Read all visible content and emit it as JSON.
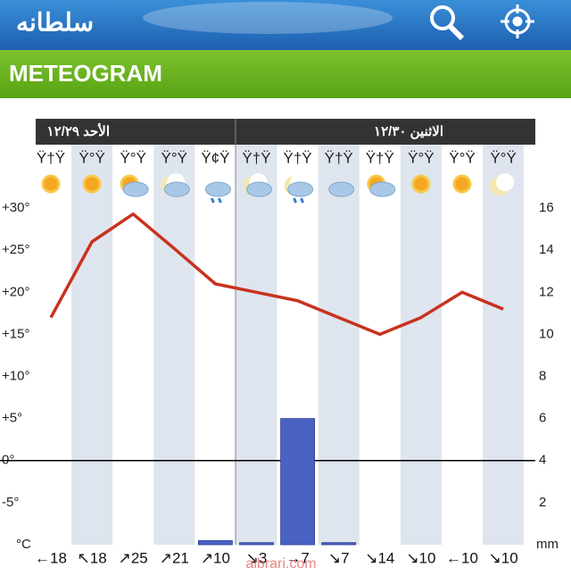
{
  "header": {
    "title": "سلطانه",
    "tab": "METEOGRAM"
  },
  "days": [
    "الأحد ١٢/٢٩",
    "الاثنين ١٢/٣٠"
  ],
  "watermark": "albrari.com",
  "chart_data": {
    "type": "line",
    "categories": [
      "Ÿ†Ÿ",
      "Ÿ°Ÿ",
      "Ÿ°Ÿ",
      "Ÿ°Ÿ",
      "Ÿ¢Ÿ",
      "Ÿ†Ÿ",
      "Ÿ†Ÿ",
      "Ÿ†Ÿ",
      "Ÿ†Ÿ",
      "Ÿ°Ÿ",
      "Ÿ°Ÿ",
      "Ÿ°Ÿ"
    ],
    "wind": [
      "←18",
      "↖18",
      "↗25",
      "↗21",
      "↗10",
      "↘3",
      "→7",
      "↘7",
      "↘14",
      "↘10",
      "←10",
      "↘10"
    ],
    "series": [
      {
        "color": "#c8321e",
        "values": [
          17,
          26,
          29.3,
          25.2,
          21,
          20,
          19,
          17,
          15,
          17,
          20,
          18
        ]
      },
      {
        "type": "bar",
        "axis": "y2",
        "color": "#4a62c4",
        "values": [
          0,
          0,
          0,
          0,
          0.2,
          0.1,
          6,
          0.1,
          0,
          0,
          0,
          0
        ]
      }
    ],
    "ylabel": "°C",
    "y2label": "mm",
    "ylim": [
      -10,
      30.75
    ],
    "yticks": [
      {
        "value": 30,
        "label": "+30°"
      },
      {
        "value": 25,
        "label": "+25°"
      },
      {
        "value": 20,
        "label": "+20°"
      },
      {
        "value": 15,
        "label": "+15°"
      },
      {
        "value": 10,
        "label": "+10°"
      },
      {
        "value": 5,
        "label": "+5°"
      },
      {
        "value": 0,
        "label": "0°"
      },
      {
        "value": -5,
        "label": "-5°"
      }
    ],
    "y2lim": [
      0,
      16.3
    ],
    "y2ticks": [
      16,
      14,
      12,
      10,
      8,
      6,
      4,
      2
    ]
  }
}
